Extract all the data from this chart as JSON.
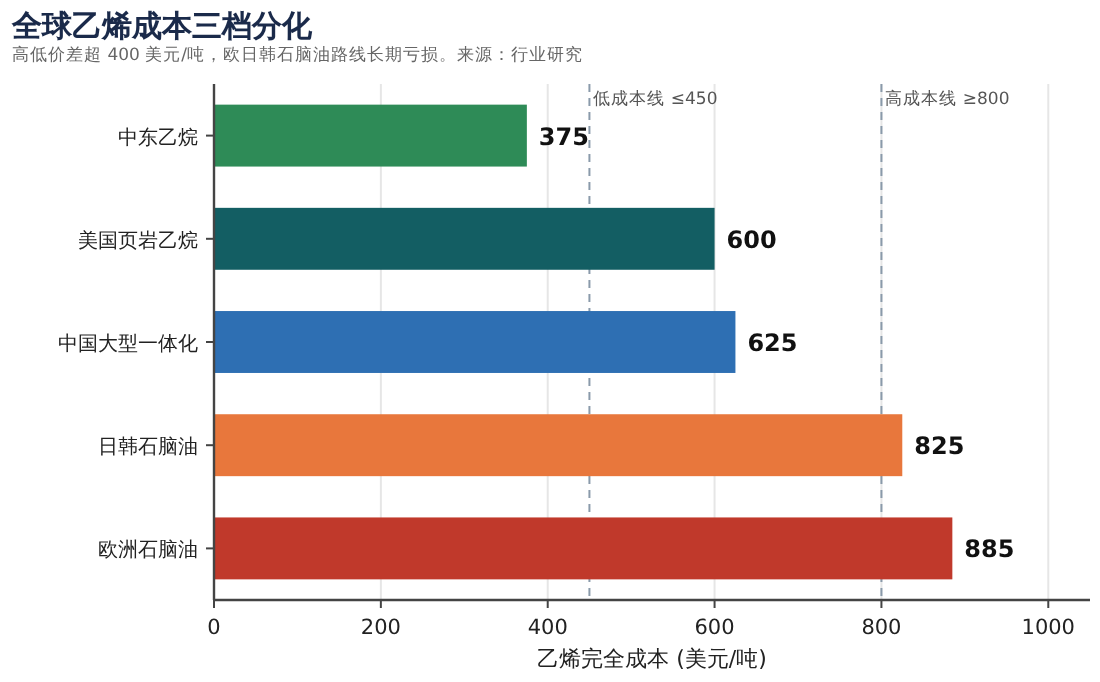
{
  "chart_data": {
    "type": "bar",
    "orientation": "horizontal",
    "title": "全球乙烯成本三档分化",
    "subtitle": "高低价差超 400 美元/吨，欧日韩石脑油路线长期亏损。来源：行业研究",
    "xlabel": "乙烯完全成本 (美元/吨)",
    "categories": [
      "中东乙烷",
      "美国页岩乙烷",
      "中国大型一体化",
      "日韩石脑油",
      "欧洲石脑油"
    ],
    "values": [
      375,
      600,
      625,
      825,
      885
    ],
    "colors": [
      "#2e8b57",
      "#135e63",
      "#2e6fb3",
      "#e8773c",
      "#c0392b"
    ],
    "xlim": [
      0,
      1050
    ],
    "xticks": [
      0,
      200,
      400,
      600,
      800,
      1000
    ],
    "grid": "x",
    "data_labels": true,
    "ref_lines": [
      {
        "axis": "x",
        "value": 450,
        "label": "低成本线 ≤450",
        "color": "#8a9aaa",
        "line_style": "dashed"
      },
      {
        "axis": "x",
        "value": 800,
        "label": "高成本线 ≥800",
        "color": "#8a9aaa",
        "line_style": "dashed"
      }
    ]
  }
}
